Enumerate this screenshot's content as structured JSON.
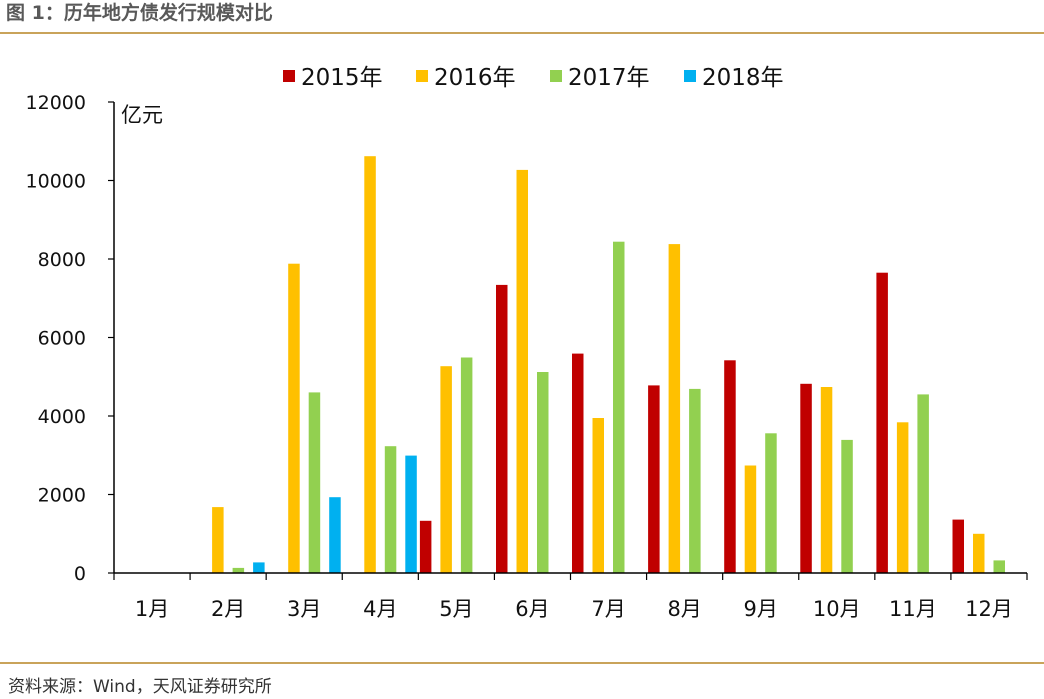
{
  "figure": {
    "title": "图 1：历年地方债发行规模对比",
    "source": "资料来源：Wind，天风证券研究所"
  },
  "chart_data": {
    "type": "bar",
    "categories": [
      "1月",
      "2月",
      "3月",
      "4月",
      "5月",
      "6月",
      "7月",
      "8月",
      "9月",
      "10月",
      "11月",
      "12月"
    ],
    "series": [
      {
        "name": "2015年",
        "color": "#c00000",
        "values": [
          0,
          0,
          0,
          0,
          1330,
          7340,
          5590,
          4780,
          5420,
          4820,
          7650,
          1360
        ]
      },
      {
        "name": "2016年",
        "color": "#ffc000",
        "values": [
          0,
          1680,
          7880,
          10620,
          5270,
          10270,
          3950,
          8380,
          2740,
          4740,
          3840,
          1000
        ]
      },
      {
        "name": "2017年",
        "color": "#92d050",
        "values": [
          0,
          130,
          4600,
          3230,
          5490,
          5120,
          8440,
          4690,
          3560,
          3390,
          4550,
          320
        ]
      },
      {
        "name": "2018年",
        "color": "#00b0f0",
        "values": [
          0,
          270,
          1930,
          2990,
          0,
          0,
          0,
          0,
          0,
          0,
          0,
          0
        ]
      }
    ],
    "ylabel": "亿元",
    "ylim": [
      0,
      12000
    ],
    "yticks": [
      0,
      2000,
      4000,
      6000,
      8000,
      10000,
      12000
    ],
    "grid": false,
    "legend_position": "top"
  }
}
